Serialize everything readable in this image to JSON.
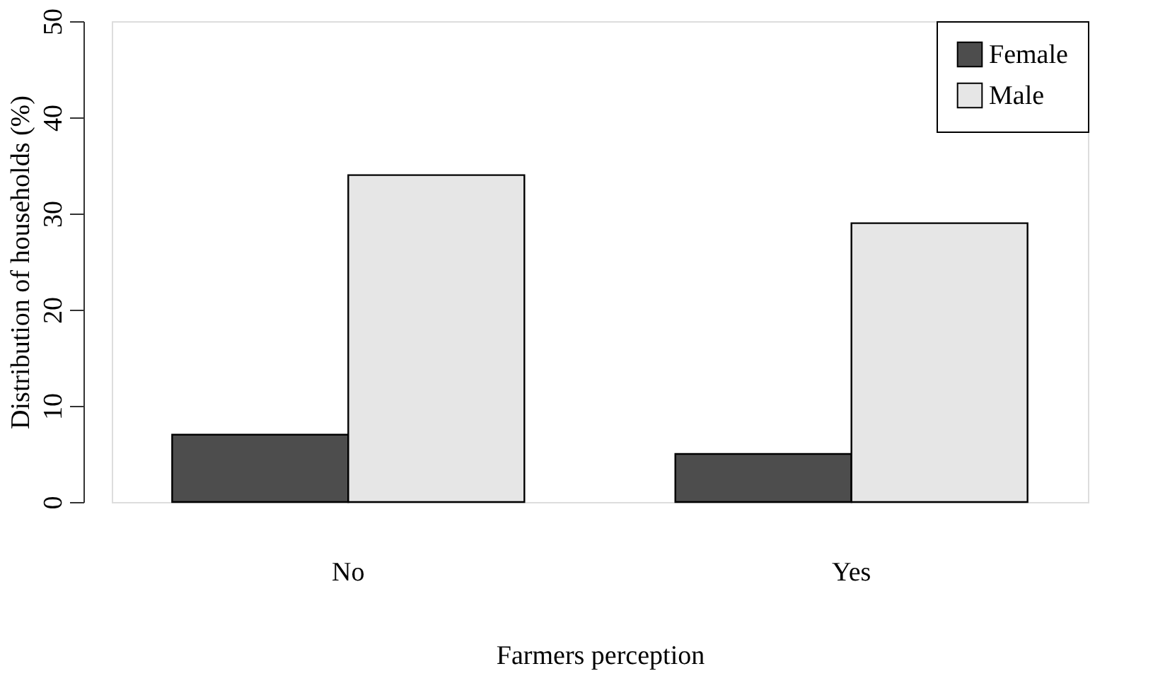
{
  "chart_data": {
    "type": "bar",
    "xlabel": "Farmers perception",
    "ylabel": "Distribution of households (%)",
    "categories": [
      "No",
      "Yes"
    ],
    "series": [
      {
        "name": "Female",
        "color": "#4d4d4d",
        "values": [
          7,
          5
        ]
      },
      {
        "name": "Male",
        "color": "#e6e6e6",
        "values": [
          34,
          29
        ]
      }
    ],
    "ylim": [
      0,
      50
    ],
    "yticks": [
      0,
      10,
      20,
      30,
      40,
      50
    ],
    "grid": false,
    "legend": "top right"
  }
}
